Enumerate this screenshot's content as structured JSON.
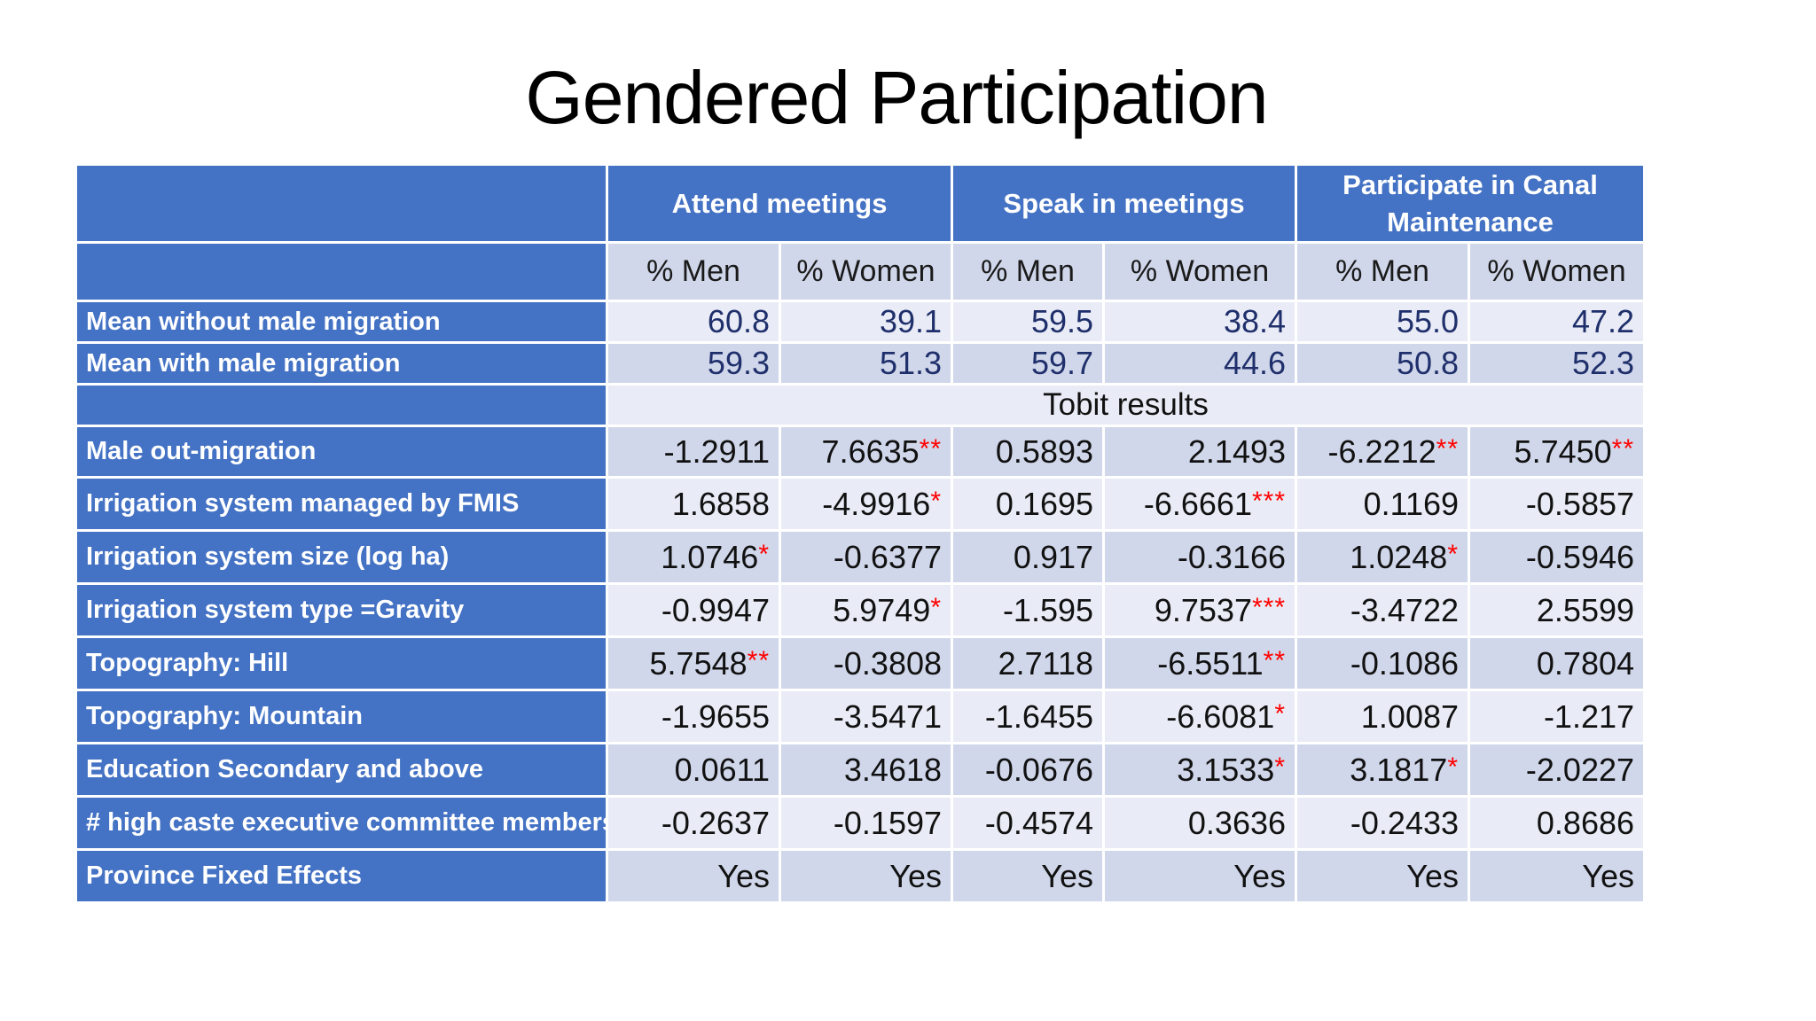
{
  "title": "Gendered Participation",
  "headers": {
    "groups": [
      "Attend meetings",
      "Speak in meetings",
      "Participate in Canal Maintenance"
    ],
    "sub": [
      "% Men",
      "% Women",
      "% Men",
      "% Women",
      "% Men",
      "% Women"
    ]
  },
  "means": [
    {
      "label": "Mean without male migration",
      "values": [
        "60.8",
        "39.1",
        "59.5",
        "38.4",
        "55.0",
        "47.2"
      ]
    },
    {
      "label": "Mean with male migration",
      "values": [
        "59.3",
        "51.3",
        "59.7",
        "44.6",
        "50.8",
        "52.3"
      ]
    }
  ],
  "tobit_label": "Tobit results",
  "rows": [
    {
      "label": "Male out-migration",
      "values": [
        "-1.2911",
        "7.6635",
        "0.5893",
        "2.1493",
        "-6.2212",
        "5.7450"
      ],
      "stars": [
        "",
        "**",
        "",
        "",
        "**",
        "**"
      ]
    },
    {
      "label": "Irrigation system managed by FMIS",
      "values": [
        "1.6858",
        "-4.9916",
        "0.1695",
        "-6.6661",
        "0.1169",
        "-0.5857"
      ],
      "stars": [
        "",
        "*",
        "",
        "***",
        "",
        ""
      ]
    },
    {
      "label": "Irrigation system size (log ha)",
      "values": [
        "1.0746",
        "-0.6377",
        "0.917",
        "-0.3166",
        "1.0248",
        "-0.5946"
      ],
      "stars": [
        "*",
        "",
        "",
        "",
        "*",
        ""
      ]
    },
    {
      "label": "Irrigation system type =Gravity",
      "values": [
        "-0.9947",
        "5.9749",
        "-1.595",
        "9.7537",
        "-3.4722",
        "2.5599"
      ],
      "stars": [
        "",
        "*",
        "",
        "***",
        "",
        ""
      ]
    },
    {
      "label": "Topography:  Hill",
      "values": [
        "5.7548",
        "-0.3808",
        "2.7118",
        "-6.5511",
        "-0.1086",
        "0.7804"
      ],
      "stars": [
        "**",
        "",
        "",
        "**",
        "",
        ""
      ]
    },
    {
      "label": "Topography:  Mountain",
      "values": [
        "-1.9655",
        "-3.5471",
        "-1.6455",
        "-6.6081",
        "1.0087",
        "-1.217"
      ],
      "stars": [
        "",
        "",
        "",
        "*",
        "",
        ""
      ]
    },
    {
      "label": "Education Secondary and above",
      "values": [
        "0.0611",
        "3.4618",
        "-0.0676",
        "3.1533",
        "3.1817",
        "-2.0227"
      ],
      "stars": [
        "",
        "",
        "",
        "*",
        "*",
        ""
      ]
    },
    {
      "label": "# high caste executive committee members",
      "values": [
        "-0.2637",
        "-0.1597",
        "-0.4574",
        "0.3636",
        "-0.2433",
        "0.8686"
      ],
      "stars": [
        "",
        "",
        "",
        "",
        "",
        ""
      ]
    },
    {
      "label": "Province Fixed Effects",
      "values": [
        "Yes",
        "Yes",
        "Yes",
        "Yes",
        "Yes",
        "Yes"
      ],
      "stars": [
        "",
        "",
        "",
        "",
        "",
        ""
      ]
    }
  ],
  "colors": {
    "header": "#4472c4",
    "band_dark": "#d0d7ea",
    "band_light": "#e9ecf6",
    "star": "#ff0000",
    "mean_text": "#1f2f6b"
  }
}
